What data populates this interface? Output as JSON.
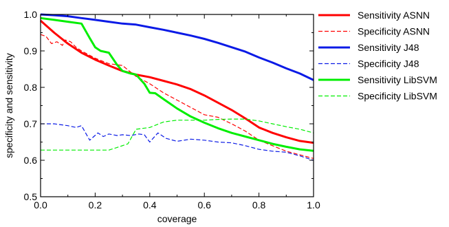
{
  "chart_data": {
    "type": "line",
    "xlabel": "coverage",
    "ylabel": "specificity and sensitivity",
    "xlim": [
      0.0,
      1.0
    ],
    "ylim": [
      0.5,
      1.0
    ],
    "x_ticks": [
      "0.0",
      "0.2",
      "0.4",
      "0.6",
      "0.8",
      "1.0"
    ],
    "y_ticks": [
      "0.5",
      "0.6",
      "0.7",
      "0.8",
      "0.9",
      "1.0"
    ],
    "grid": false,
    "legend_position": "right",
    "series": [
      {
        "name": "Sensitivity ASNN",
        "color": "#ff0000",
        "dash": "solid",
        "width": 3,
        "points": [
          [
            0,
            0.983
          ],
          [
            0.05,
            0.95
          ],
          [
            0.1,
            0.92
          ],
          [
            0.15,
            0.895
          ],
          [
            0.2,
            0.876
          ],
          [
            0.25,
            0.86
          ],
          [
            0.3,
            0.845
          ],
          [
            0.35,
            0.835
          ],
          [
            0.4,
            0.828
          ],
          [
            0.45,
            0.818
          ],
          [
            0.5,
            0.808
          ],
          [
            0.55,
            0.795
          ],
          [
            0.6,
            0.778
          ],
          [
            0.65,
            0.758
          ],
          [
            0.7,
            0.738
          ],
          [
            0.75,
            0.715
          ],
          [
            0.8,
            0.69
          ],
          [
            0.85,
            0.675
          ],
          [
            0.9,
            0.663
          ],
          [
            0.95,
            0.653
          ],
          [
            1.0,
            0.648
          ]
        ]
      },
      {
        "name": "Specificity ASNN",
        "color": "#ff0000",
        "dash": "dashed",
        "width": 1.2,
        "points": [
          [
            0,
            0.945
          ],
          [
            0.02,
            0.94
          ],
          [
            0.04,
            0.92
          ],
          [
            0.06,
            0.925
          ],
          [
            0.08,
            0.915
          ],
          [
            0.09,
            0.93
          ],
          [
            0.11,
            0.925
          ],
          [
            0.13,
            0.91
          ],
          [
            0.15,
            0.9
          ],
          [
            0.2,
            0.88
          ],
          [
            0.25,
            0.865
          ],
          [
            0.3,
            0.86
          ],
          [
            0.35,
            0.83
          ],
          [
            0.4,
            0.81
          ],
          [
            0.45,
            0.785
          ],
          [
            0.5,
            0.765
          ],
          [
            0.55,
            0.745
          ],
          [
            0.6,
            0.725
          ],
          [
            0.65,
            0.718
          ],
          [
            0.7,
            0.7
          ],
          [
            0.75,
            0.68
          ],
          [
            0.8,
            0.655
          ],
          [
            0.85,
            0.64
          ],
          [
            0.9,
            0.625
          ],
          [
            0.95,
            0.615
          ],
          [
            1.0,
            0.605
          ]
        ]
      },
      {
        "name": "Sensitivity J48",
        "color": "#0a1ae6",
        "dash": "solid",
        "width": 3,
        "points": [
          [
            0,
            1.0
          ],
          [
            0.05,
            0.998
          ],
          [
            0.1,
            0.995
          ],
          [
            0.15,
            0.99
          ],
          [
            0.2,
            0.985
          ],
          [
            0.25,
            0.98
          ],
          [
            0.3,
            0.975
          ],
          [
            0.35,
            0.972
          ],
          [
            0.4,
            0.965
          ],
          [
            0.45,
            0.958
          ],
          [
            0.5,
            0.95
          ],
          [
            0.55,
            0.942
          ],
          [
            0.6,
            0.933
          ],
          [
            0.65,
            0.922
          ],
          [
            0.7,
            0.91
          ],
          [
            0.75,
            0.898
          ],
          [
            0.8,
            0.882
          ],
          [
            0.85,
            0.868
          ],
          [
            0.9,
            0.852
          ],
          [
            0.95,
            0.838
          ],
          [
            1.0,
            0.82
          ]
        ]
      },
      {
        "name": "Specificity J48",
        "color": "#0a1ae6",
        "dash": "dashed",
        "width": 1.2,
        "points": [
          [
            0,
            0.7
          ],
          [
            0.05,
            0.7
          ],
          [
            0.1,
            0.695
          ],
          [
            0.13,
            0.69
          ],
          [
            0.15,
            0.695
          ],
          [
            0.18,
            0.655
          ],
          [
            0.21,
            0.675
          ],
          [
            0.23,
            0.665
          ],
          [
            0.25,
            0.672
          ],
          [
            0.28,
            0.668
          ],
          [
            0.3,
            0.67
          ],
          [
            0.33,
            0.668
          ],
          [
            0.36,
            0.672
          ],
          [
            0.38,
            0.67
          ],
          [
            0.4,
            0.65
          ],
          [
            0.43,
            0.675
          ],
          [
            0.46,
            0.66
          ],
          [
            0.5,
            0.652
          ],
          [
            0.55,
            0.658
          ],
          [
            0.6,
            0.655
          ],
          [
            0.65,
            0.65
          ],
          [
            0.7,
            0.648
          ],
          [
            0.75,
            0.64
          ],
          [
            0.8,
            0.63
          ],
          [
            0.85,
            0.625
          ],
          [
            0.9,
            0.622
          ],
          [
            0.95,
            0.612
          ],
          [
            1.0,
            0.6
          ]
        ]
      },
      {
        "name": "Sensitivity LibSVM",
        "color": "#00ee00",
        "dash": "solid",
        "width": 3,
        "points": [
          [
            0,
            0.99
          ],
          [
            0.05,
            0.985
          ],
          [
            0.1,
            0.98
          ],
          [
            0.15,
            0.975
          ],
          [
            0.18,
            0.935
          ],
          [
            0.2,
            0.91
          ],
          [
            0.22,
            0.9
          ],
          [
            0.25,
            0.895
          ],
          [
            0.28,
            0.862
          ],
          [
            0.3,
            0.845
          ],
          [
            0.33,
            0.838
          ],
          [
            0.35,
            0.835
          ],
          [
            0.38,
            0.81
          ],
          [
            0.4,
            0.785
          ],
          [
            0.42,
            0.784
          ],
          [
            0.45,
            0.768
          ],
          [
            0.5,
            0.742
          ],
          [
            0.55,
            0.72
          ],
          [
            0.6,
            0.703
          ],
          [
            0.65,
            0.688
          ],
          [
            0.7,
            0.675
          ],
          [
            0.75,
            0.665
          ],
          [
            0.8,
            0.655
          ],
          [
            0.85,
            0.645
          ],
          [
            0.9,
            0.637
          ],
          [
            0.95,
            0.63
          ],
          [
            1.0,
            0.626
          ]
        ]
      },
      {
        "name": "Specificity LibSVM",
        "color": "#00ee00",
        "dash": "dashed",
        "width": 1.2,
        "points": [
          [
            0,
            0.628
          ],
          [
            0.1,
            0.628
          ],
          [
            0.2,
            0.628
          ],
          [
            0.25,
            0.628
          ],
          [
            0.28,
            0.635
          ],
          [
            0.32,
            0.645
          ],
          [
            0.35,
            0.685
          ],
          [
            0.4,
            0.69
          ],
          [
            0.45,
            0.705
          ],
          [
            0.5,
            0.71
          ],
          [
            0.55,
            0.71
          ],
          [
            0.6,
            0.71
          ],
          [
            0.65,
            0.712
          ],
          [
            0.7,
            0.713
          ],
          [
            0.75,
            0.713
          ],
          [
            0.8,
            0.708
          ],
          [
            0.85,
            0.7
          ],
          [
            0.9,
            0.692
          ],
          [
            0.95,
            0.685
          ],
          [
            1.0,
            0.675
          ]
        ]
      }
    ]
  }
}
